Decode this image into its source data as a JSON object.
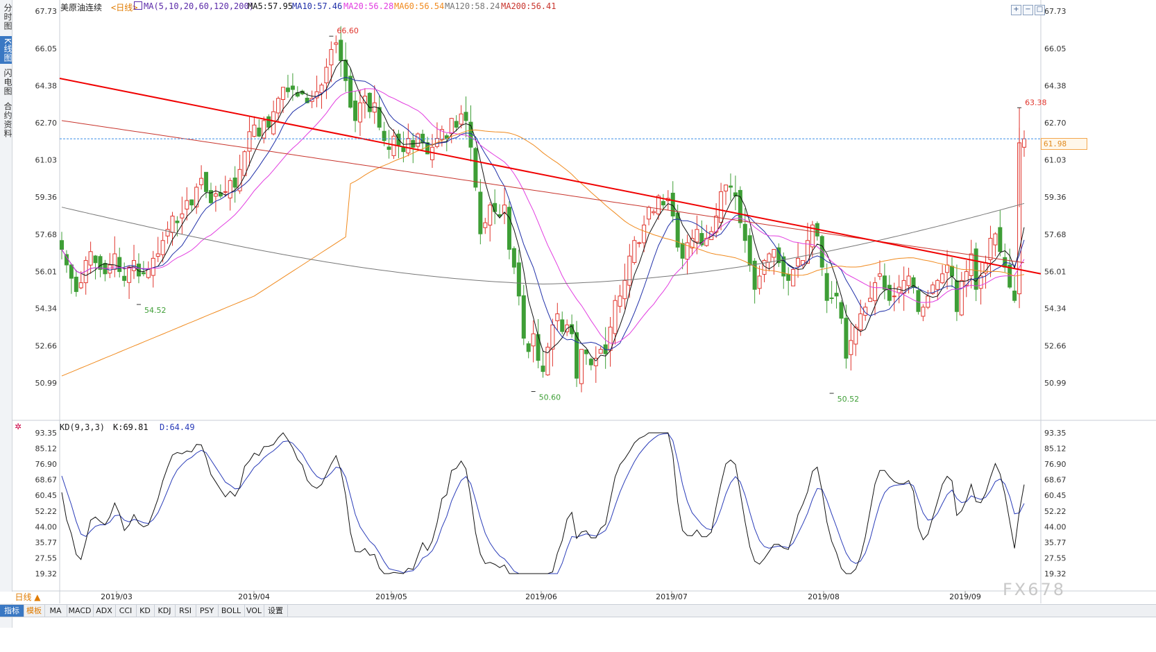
{
  "sidebar": {
    "tabs": [
      {
        "label": "分时图",
        "active": false
      },
      {
        "label": "K线图",
        "active": true
      },
      {
        "label": "闪电图",
        "active": false
      },
      {
        "label": "合约资料",
        "active": false
      }
    ]
  },
  "header": {
    "instrument": "美原油连续",
    "period": "<日线>",
    "ma_params": "MA(5,10,20,60,120,200)",
    "ma5": "MA5:57.95",
    "ma10": "MA10:57.46",
    "ma20": "MA20:56.28",
    "ma60": "MA60:56.54",
    "ma120": "MA120:58.24",
    "ma200": "MA200:56.41"
  },
  "kd_header": {
    "params": "KD(9,3,3)",
    "k": "K:69.81",
    "d": "D:64.49"
  },
  "price_tag": "61.98",
  "period_button": "日线 ▲",
  "bottom_tabs": [
    "指标",
    "模板",
    "MA",
    "MACD",
    "ADX",
    "CCI",
    "KD",
    "KDJ",
    "RSI",
    "PSY",
    "BOLL",
    "VOL",
    "设置"
  ],
  "watermark": "FX678",
  "colors": {
    "up": "#e0342c",
    "down": "#3e9e36",
    "ma5": "#111111",
    "ma10": "#1f2fa8",
    "ma20": "#e23de0",
    "ma60": "#f08a1e",
    "ma120": "#777777",
    "ma200": "#c8342c",
    "trendline": "#f00000",
    "k_line": "#111111",
    "d_line": "#2a3cb8",
    "last_price_line": "#3a8ee6"
  },
  "chart_data": {
    "type": "candlestick",
    "title": "美原油连续",
    "price_axis": {
      "ticks": [
        "67.73",
        "66.05",
        "64.38",
        "62.70",
        "61.03",
        "59.36",
        "57.68",
        "56.01",
        "54.34",
        "52.66",
        "50.99"
      ],
      "range": [
        50.2,
        67.73
      ]
    },
    "x_axis_labels": [
      "2019/03",
      "2019/04",
      "2019/05",
      "2019/06",
      "2019/07",
      "2019/08",
      "2019/09"
    ],
    "annotations": [
      {
        "text": "66.60",
        "type": "high",
        "value": 66.6
      },
      {
        "text": "54.52",
        "type": "low",
        "value": 54.52
      },
      {
        "text": "50.60",
        "type": "low",
        "value": 50.6
      },
      {
        "text": "50.52",
        "type": "low",
        "value": 50.52
      },
      {
        "text": "63.38",
        "type": "high",
        "value": 63.38
      }
    ],
    "last_price": 61.98,
    "close_series": [
      57.0,
      56.3,
      55.7,
      55.1,
      55.5,
      56.5,
      56.9,
      56.4,
      56.1,
      55.9,
      56.3,
      56.8,
      56.0,
      55.6,
      56.2,
      56.5,
      55.8,
      55.9,
      56.1,
      56.6,
      56.8,
      57.4,
      57.9,
      58.5,
      58.2,
      58.6,
      59.2,
      59.0,
      59.8,
      60.2,
      59.6,
      59.1,
      59.5,
      59.4,
      59.6,
      60.1,
      59.8,
      60.6,
      61.4,
      62.3,
      62.6,
      62.1,
      62.8,
      62.5,
      63.2,
      63.8,
      64.3,
      64.1,
      64.2,
      63.9,
      64.0,
      63.6,
      63.8,
      64.1,
      64.4,
      65.2,
      66.0,
      66.3,
      65.5,
      64.6,
      63.4,
      62.8,
      63.6,
      63.9,
      63.2,
      63.6,
      62.5,
      61.9,
      61.5,
      62.1,
      61.7,
      61.4,
      62.0,
      61.6,
      62.2,
      61.8,
      61.3,
      61.6,
      62.0,
      62.4,
      62.0,
      62.9,
      62.5,
      63.1,
      62.8,
      61.6,
      59.8,
      57.7,
      58.2,
      59.0,
      58.7,
      58.5,
      59.0,
      57.0,
      56.2,
      54.9,
      53.0,
      52.4,
      53.2,
      52.0,
      51.5,
      52.6,
      53.6,
      54.1,
      53.3,
      53.6,
      53.2,
      51.2,
      52.5,
      52.3,
      51.8,
      52.1,
      52.5,
      52.3,
      53.5,
      54.7,
      54.9,
      55.6,
      56.7,
      57.4,
      57.3,
      58.1,
      58.9,
      58.7,
      59.4,
      59.0,
      59.3,
      58.5,
      57.1,
      56.6,
      57.3,
      57.5,
      57.9,
      57.2,
      57.5,
      57.8,
      58.5,
      59.6,
      59.9,
      59.8,
      59.4,
      58.2,
      57.4,
      56.3,
      55.2,
      55.8,
      56.5,
      56.8,
      57.0,
      56.4,
      55.8,
      55.6,
      56.1,
      56.6,
      56.5,
      57.4,
      58.1,
      57.6,
      56.2,
      54.7,
      54.8,
      54.9,
      53.9,
      52.1,
      52.9,
      53.5,
      54.1,
      54.4,
      54.8,
      55.5,
      55.9,
      55.2,
      54.7,
      54.9,
      55.3,
      55.6,
      55.8,
      55.3,
      54.2,
      54.4,
      54.9,
      55.4,
      55.6,
      55.9,
      56.3,
      55.8,
      54.2,
      55.6,
      56.0,
      56.8,
      55.2,
      55.8,
      56.4,
      57.5,
      57.7,
      56.9,
      56.2,
      55.3,
      54.7,
      61.8,
      61.98
    ]
  }
}
